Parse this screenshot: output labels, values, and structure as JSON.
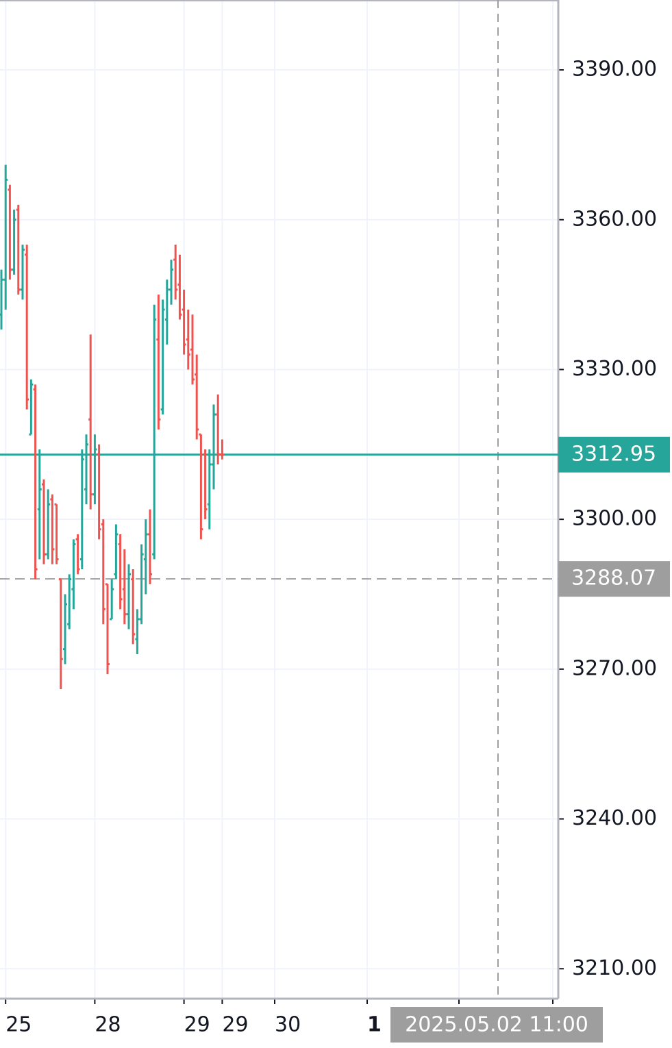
{
  "chart_data": {
    "type": "ohlc",
    "categories": [
      null,
      "25",
      null,
      null,
      null,
      null,
      null,
      null,
      null,
      null,
      null,
      null,
      null,
      null,
      null,
      null,
      null,
      null,
      null,
      null,
      null,
      null,
      "28",
      null,
      null,
      null,
      null,
      null,
      null,
      null,
      null,
      null,
      null,
      null,
      null,
      null,
      null,
      null,
      null,
      null,
      null,
      null,
      null,
      "29",
      null,
      null,
      null,
      null,
      null,
      null,
      null,
      null,
      "29"
    ],
    "open": [
      3341,
      3348,
      3366,
      3350,
      3362,
      3346,
      3353,
      3317,
      3326,
      3302,
      3307,
      3293,
      3304,
      3303,
      3288,
      3274,
      3279,
      3286,
      3296,
      3292,
      3306,
      3320,
      3305,
      3313,
      3299,
      3287,
      3280,
      3289,
      3295,
      3286,
      3281,
      3288,
      3276,
      3280,
      3292,
      3297,
      3293,
      3336,
      3322,
      3340,
      3346,
      3352,
      3347,
      3342,
      3336,
      3334,
      3329,
      3317,
      3313,
      3303,
      3311,
      3321,
      3313
    ],
    "high": [
      3350,
      3371,
      3367,
      3362,
      3363,
      3355,
      3355,
      3328,
      3327,
      3314,
      3308,
      3306,
      3305,
      3303,
      3288,
      3285,
      3289,
      3296,
      3297,
      3314,
      3317,
      3337,
      3317,
      3315,
      3300,
      3287,
      3288,
      3299,
      3297,
      3294,
      3291,
      3290,
      3282,
      3295,
      3300,
      3302,
      3343,
      3345,
      3344,
      3348,
      3352,
      3355,
      3353,
      3346,
      3342,
      3341,
      3333,
      3317,
      3314,
      3314,
      3323,
      3325,
      3316
    ],
    "low": [
      3338,
      3342,
      3348,
      3349,
      3345,
      3344,
      3322,
      3317,
      3288,
      3292,
      3291,
      3292,
      3291,
      3291,
      3266,
      3271,
      3278,
      3282,
      3289,
      3290,
      3303,
      3302,
      3303,
      3296,
      3279,
      3269,
      3280,
      3288,
      3282,
      3279,
      3278,
      3275,
      3273,
      3279,
      3285,
      3287,
      3292,
      3318,
      3321,
      3335,
      3343,
      3344,
      3340,
      3333,
      3330,
      3327,
      3316,
      3296,
      3300,
      3298,
      3306,
      3311,
      3312
    ],
    "close": [
      3348,
      3368,
      3350,
      3360,
      3346,
      3354,
      3324,
      3327,
      3290,
      3306,
      3293,
      3303,
      3294,
      3292,
      3272,
      3283,
      3288,
      3295,
      3290,
      3312,
      3315,
      3305,
      3314,
      3298,
      3282,
      3271,
      3286,
      3297,
      3284,
      3281,
      3289,
      3277,
      3280,
      3293,
      3297,
      3289,
      3340,
      3320,
      3342,
      3346,
      3350,
      3346,
      3341,
      3335,
      3333,
      3328,
      3318,
      3298,
      3302,
      3311,
      3321,
      3313,
      3312.95
    ],
    "up_color": "#26a69a",
    "down_color": "#ef5350",
    "ylim": [
      3204,
      3404
    ],
    "yticks": [
      {
        "value": 3210,
        "label": "3210.00"
      },
      {
        "value": 3240,
        "label": "3240.00"
      },
      {
        "value": 3270,
        "label": "3270.00"
      },
      {
        "value": 3300,
        "label": "3300.00"
      },
      {
        "value": 3330,
        "label": "3330.00"
      },
      {
        "value": 3360,
        "label": "3360.00"
      },
      {
        "value": 3390,
        "label": "3390.00"
      }
    ],
    "future_labels": [
      "30",
      "1"
    ],
    "price_lines": [
      {
        "value": 3312.95,
        "color": "#26a69a",
        "style": "solid"
      },
      {
        "value": 3288.07,
        "color": "#9e9e9e",
        "style": "dashed"
      }
    ],
    "crosshair": "2025.05.02 11:00",
    "grid": true
  }
}
